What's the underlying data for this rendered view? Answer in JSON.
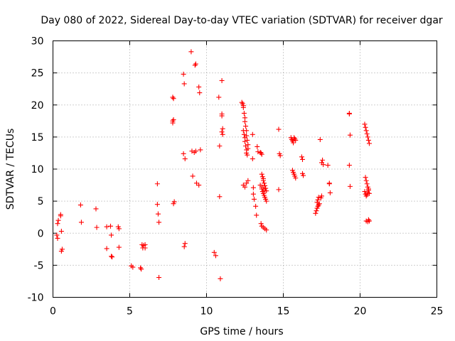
{
  "chart_data": {
    "type": "scatter",
    "title": "Day 080 of 2022, Sidereal Day-to-day VTEC variation (SDTVAR) for receiver dgar",
    "xlabel": "GPS time / hours",
    "ylabel": "SDTVAR / TECUs",
    "xlim": [
      0,
      25
    ],
    "ylim": [
      -10,
      30
    ],
    "xticks": [
      "0",
      "5",
      "10",
      "15",
      "20",
      "25"
    ],
    "yticks": [
      "-10",
      "-5",
      "0",
      "5",
      "10",
      "15",
      "20",
      "25",
      "30"
    ],
    "grid": true,
    "marker": "+",
    "color": "#ff0000",
    "series": [
      {
        "name": "SDTVAR",
        "x": [
          0.25,
          0.3,
          0.3,
          0.35,
          0.5,
          0.5,
          0.55,
          0.6,
          0.55,
          1.8,
          1.85,
          2.8,
          2.85,
          3.5,
          3.5,
          3.75,
          3.8,
          3.85,
          3.8,
          4.25,
          4.3,
          4.3,
          5.1,
          5.2,
          5.7,
          5.75,
          5.8,
          5.85,
          5.9,
          6.0,
          6.0,
          6.8,
          6.8,
          6.85,
          6.9,
          6.9,
          7.8,
          7.85,
          7.85,
          7.8,
          7.8,
          7.9,
          7.85,
          8.5,
          8.55,
          8.5,
          8.6,
          8.6,
          8.55,
          9.0,
          9.05,
          9.1,
          9.2,
          9.25,
          9.3,
          9.35,
          9.3,
          9.5,
          9.55,
          9.5,
          9.6,
          10.5,
          10.6,
          10.8,
          10.85,
          10.85,
          10.9,
          11.0,
          11.0,
          11.0,
          11.05,
          11.0,
          11.05,
          12.3,
          12.35,
          12.4,
          12.4,
          12.45,
          12.5,
          12.5,
          12.55,
          12.6,
          12.6,
          12.65,
          12.7,
          12.7,
          12.4,
          12.45,
          12.5,
          12.5,
          12.55,
          12.6,
          12.6,
          12.65,
          12.4,
          12.5,
          12.6,
          12.7,
          13.0,
          13.0,
          13.05,
          13.05,
          13.1,
          13.2,
          13.25,
          13.3,
          13.35,
          13.5,
          13.55,
          13.6,
          13.6,
          13.65,
          13.7,
          13.7,
          13.75,
          13.8,
          13.85,
          13.9,
          13.6,
          13.65,
          13.7,
          13.75,
          13.8,
          13.85,
          13.9,
          13.55,
          13.6,
          13.7,
          13.8,
          13.9,
          13.5,
          13.6,
          13.7,
          13.8,
          14.7,
          14.75,
          14.8,
          14.7,
          15.5,
          15.55,
          15.6,
          15.65,
          15.7,
          15.75,
          15.8,
          15.6,
          15.65,
          15.7,
          15.75,
          15.8,
          16.2,
          16.25,
          16.25,
          16.3,
          17.1,
          17.15,
          17.2,
          17.25,
          17.3,
          17.35,
          17.4,
          17.2,
          17.25,
          17.3,
          17.45,
          17.5,
          17.55,
          17.5,
          17.6,
          17.9,
          18.0,
          18.0,
          18.05,
          19.3,
          19.3,
          19.35,
          19.3,
          19.35,
          20.3,
          20.35,
          20.4,
          20.45,
          20.5,
          20.55,
          20.6,
          20.35,
          20.4,
          20.45,
          20.5,
          20.55,
          20.6,
          20.3,
          20.35,
          20.4,
          20.45,
          20.5,
          20.55,
          20.4,
          20.5,
          20.55,
          20.6
        ],
        "y": [
          -0.3,
          -0.8,
          1.5,
          2.0,
          2.7,
          2.9,
          -2.8,
          -2.5,
          0.3,
          4.4,
          1.7,
          3.8,
          0.9,
          1.0,
          -2.4,
          1.1,
          -0.3,
          -3.7,
          -3.6,
          1.0,
          0.7,
          -2.2,
          -5.1,
          -5.3,
          -5.4,
          -5.6,
          -1.8,
          -2.3,
          -1.9,
          -2.3,
          -1.8,
          7.7,
          4.5,
          3.0,
          1.7,
          -6.9,
          21.2,
          21.0,
          17.7,
          17.5,
          17.2,
          4.9,
          4.6,
          24.8,
          23.3,
          12.4,
          11.6,
          -1.6,
          -2.1,
          28.3,
          12.8,
          8.9,
          12.6,
          26.2,
          26.4,
          7.8,
          12.8,
          22.8,
          21.9,
          7.5,
          13.0,
          -3.0,
          -3.5,
          21.2,
          13.6,
          5.7,
          -7.1,
          23.8,
          18.6,
          18.3,
          16.3,
          15.8,
          15.4,
          20.4,
          20.2,
          19.9,
          19.6,
          18.7,
          18.0,
          17.4,
          16.7,
          16.0,
          15.2,
          14.5,
          13.8,
          13.2,
          16.0,
          15.4,
          14.9,
          14.3,
          13.6,
          13.0,
          12.5,
          12.2,
          7.5,
          7.2,
          7.8,
          8.2,
          15.4,
          11.6,
          7.1,
          6.1,
          5.3,
          4.2,
          2.8,
          13.5,
          12.7,
          12.6,
          12.5,
          12.3,
          9.2,
          8.8,
          8.5,
          8.2,
          7.8,
          7.4,
          7.0,
          6.6,
          6.9,
          6.5,
          6.2,
          5.9,
          5.6,
          5.3,
          5.0,
          1.5,
          1.1,
          0.9,
          0.7,
          0.5,
          7.5,
          7.2,
          6.9,
          6.6,
          16.2,
          12.4,
          12.1,
          6.8,
          14.9,
          14.6,
          14.4,
          14.1,
          14.9,
          14.7,
          14.5,
          9.8,
          9.5,
          9.2,
          8.9,
          8.6,
          11.9,
          11.5,
          9.3,
          9.0,
          3.1,
          3.5,
          3.9,
          4.2,
          4.4,
          4.6,
          14.6,
          4.8,
          5.2,
          5.6,
          5.5,
          5.8,
          11.4,
          11.0,
          10.7,
          10.6,
          7.8,
          7.7,
          6.3,
          18.7,
          18.6,
          15.3,
          10.6,
          7.3,
          17.0,
          16.5,
          16.0,
          15.5,
          15.0,
          14.5,
          14.0,
          8.7,
          8.2,
          7.7,
          7.2,
          6.7,
          6.2,
          6.5,
          6.1,
          5.8,
          6.0,
          6.3,
          6.9,
          1.9,
          1.8,
          2.1,
          1.9
        ]
      }
    ]
  }
}
